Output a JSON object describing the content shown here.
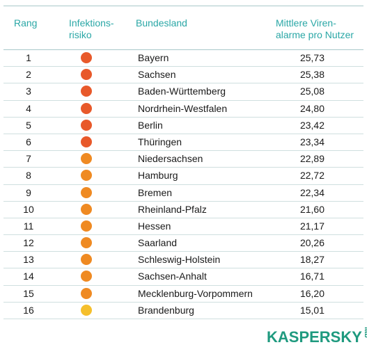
{
  "headers": {
    "rang": "Rang",
    "risk_line1": "Infektions-",
    "risk_line2": "risiko",
    "land": "Bundesland",
    "alarm_line1": "Mittlere Viren-",
    "alarm_line2": "alarme pro Nutzer"
  },
  "colors": {
    "header_text": "#2aa7a6",
    "risk_high": "#e8592a",
    "risk_medium": "#ef8a22",
    "risk_low": "#f5bf2c",
    "logo": "#1f9a7f"
  },
  "rows": [
    {
      "rank": "1",
      "risk": "high",
      "land": "Bayern",
      "value": "25,73"
    },
    {
      "rank": "2",
      "risk": "high",
      "land": "Sachsen",
      "value": "25,38"
    },
    {
      "rank": "3",
      "risk": "high",
      "land": "Baden-Württemberg",
      "value": "25,08"
    },
    {
      "rank": "4",
      "risk": "high",
      "land": "Nordrhein-Westfalen",
      "value": "24,80"
    },
    {
      "rank": "5",
      "risk": "high",
      "land": "Berlin",
      "value": "23,42"
    },
    {
      "rank": "6",
      "risk": "high",
      "land": "Thüringen",
      "value": "23,34"
    },
    {
      "rank": "7",
      "risk": "medium",
      "land": "Niedersachsen",
      "value": "22,89"
    },
    {
      "rank": "8",
      "risk": "medium",
      "land": "Hamburg",
      "value": "22,72"
    },
    {
      "rank": "9",
      "risk": "medium",
      "land": "Bremen",
      "value": "22,34"
    },
    {
      "rank": "10",
      "risk": "medium",
      "land": "Rheinland-Pfalz",
      "value": "21,60"
    },
    {
      "rank": "11",
      "risk": "medium",
      "land": "Hessen",
      "value": "21,17"
    },
    {
      "rank": "12",
      "risk": "medium",
      "land": "Saarland",
      "value": "20,26"
    },
    {
      "rank": "13",
      "risk": "medium",
      "land": "Schleswig-Holstein",
      "value": "18,27"
    },
    {
      "rank": "14",
      "risk": "medium",
      "land": "Sachsen-Anhalt",
      "value": "16,71"
    },
    {
      "rank": "15",
      "risk": "medium",
      "land": "Mecklenburg-Vorpommern",
      "value": "16,20"
    },
    {
      "rank": "16",
      "risk": "low",
      "land": "Brandenburg",
      "value": "15,01"
    }
  ],
  "logo": {
    "word": "KASPERSKY",
    "suffix": "lab"
  }
}
